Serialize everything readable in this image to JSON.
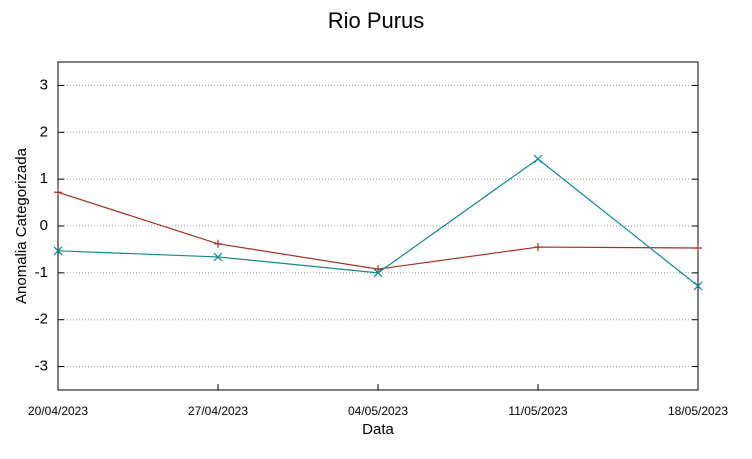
{
  "chart_data": {
    "type": "line",
    "title": "Rio Purus",
    "xlabel": "Data",
    "ylabel": "Anomalia Categorizada",
    "categories": [
      "20/04/2023",
      "27/04/2023",
      "04/05/2023",
      "11/05/2023",
      "18/05/2023"
    ],
    "series": [
      {
        "color": "#a0302a",
        "marker": "+",
        "values": [
          0.72,
          -0.38,
          -0.92,
          -0.45,
          -0.47
        ]
      },
      {
        "color": "#13888a",
        "marker": "x",
        "values": [
          -0.53,
          -0.66,
          -1.0,
          1.43,
          -1.28
        ]
      }
    ],
    "ylim": [
      -3.5,
      3.5
    ],
    "yticks": [
      -3,
      -2,
      -1,
      0,
      1,
      2,
      3
    ],
    "grid": true
  }
}
